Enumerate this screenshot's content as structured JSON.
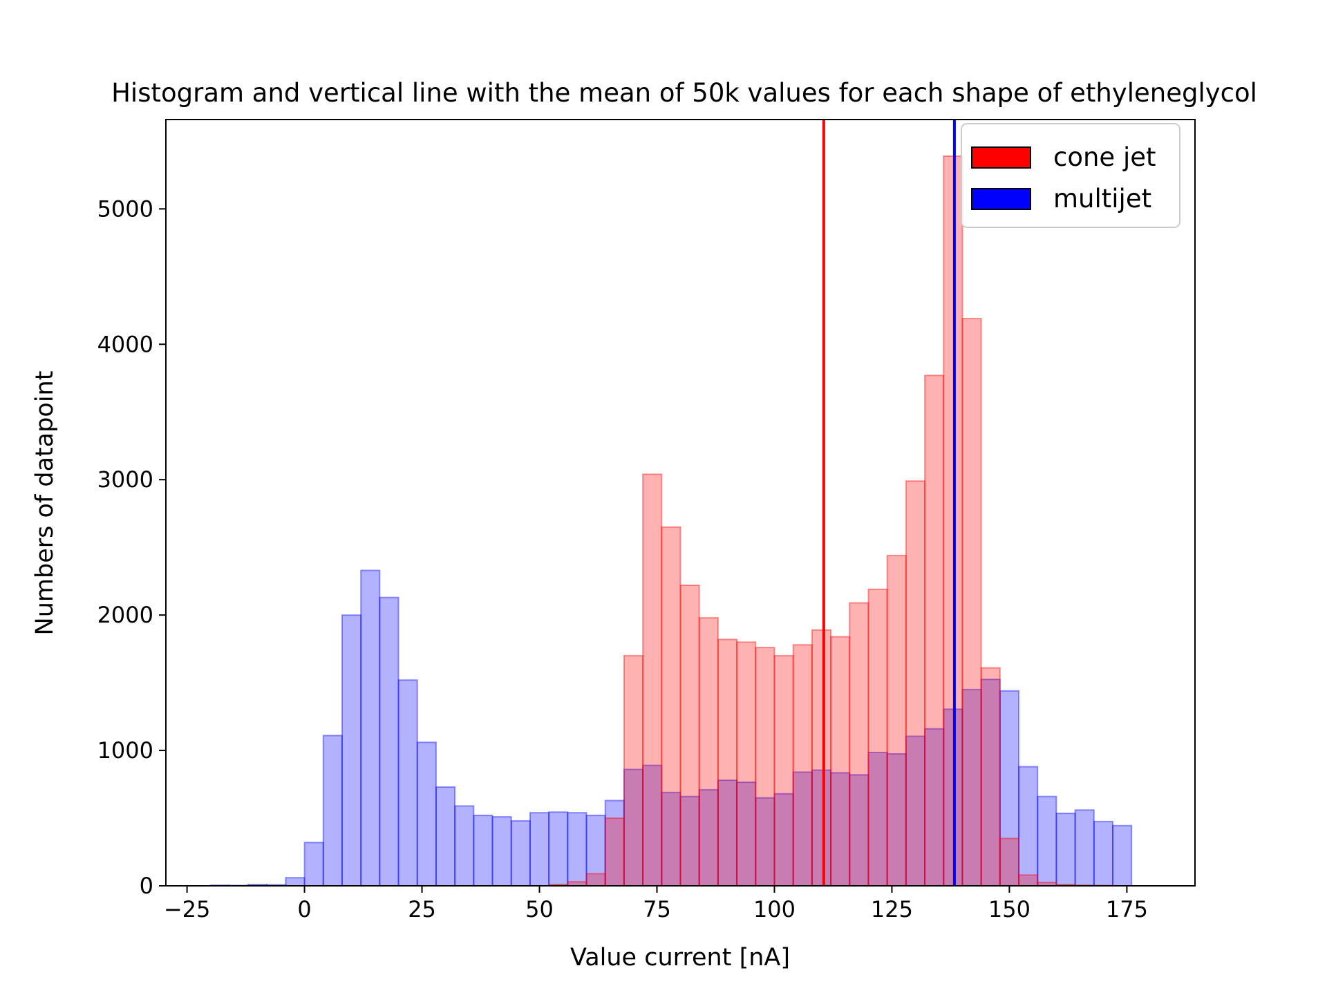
{
  "chart_data": {
    "type": "histogram",
    "title": "Histogram and vertical line with the mean of 50k values for each shape of ethyleneglycol",
    "xlabel": "Value current [nA]",
    "ylabel": "Numbers of datapoint",
    "xlim": [
      -29.5,
      189.5
    ],
    "ylim": [
      0,
      5660
    ],
    "xticks": [
      -25,
      0,
      25,
      50,
      75,
      100,
      125,
      150,
      175
    ],
    "yticks": [
      0,
      1000,
      2000,
      3000,
      4000,
      5000
    ],
    "xtick_labels": [
      "−25",
      "0",
      "25",
      "50",
      "75",
      "100",
      "125",
      "150",
      "175"
    ],
    "ytick_labels": [
      "0",
      "1000",
      "2000",
      "3000",
      "4000",
      "5000"
    ],
    "grid": false,
    "legend_position": "top-right",
    "series": [
      {
        "name": "multijet",
        "color": "#0000ff",
        "alpha": 0.3,
        "bin_start": -20,
        "bin_width": 4.0,
        "values": [
          5,
          3,
          10,
          8,
          60,
          320,
          1110,
          2000,
          2330,
          2130,
          1520,
          1060,
          730,
          590,
          520,
          510,
          480,
          540,
          545,
          540,
          520,
          630,
          860,
          890,
          690,
          660,
          710,
          780,
          765,
          650,
          680,
          840,
          855,
          835,
          820,
          985,
          975,
          1105,
          1160,
          1305,
          1450,
          1525,
          1440,
          880,
          660,
          535,
          560,
          475,
          445
        ]
      },
      {
        "name": "cone jet",
        "color": "#ff0000",
        "alpha": 0.3,
        "bin_start": 52,
        "bin_width": 4.0,
        "values": [
          10,
          30,
          90,
          500,
          1700,
          3040,
          2650,
          2220,
          1980,
          1820,
          1800,
          1760,
          1700,
          1780,
          1890,
          1840,
          2090,
          2190,
          2440,
          2990,
          3770,
          5390,
          4190,
          1610,
          350,
          80,
          25,
          10,
          5,
          3
        ]
      }
    ],
    "mean_lines": [
      {
        "series": "cone jet",
        "x": 110.5,
        "color": "#ff0000"
      },
      {
        "series": "multijet",
        "x": 138.3,
        "color": "#0000ff"
      }
    ]
  }
}
